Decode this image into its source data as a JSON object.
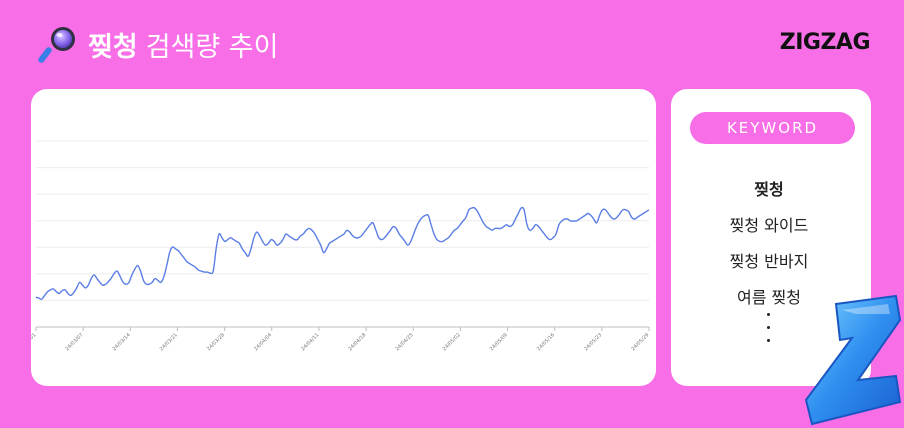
{
  "header": {
    "keyword": "찢청",
    "title_suffix": "검색량 추이",
    "icon": "magnifier-icon"
  },
  "brand": {
    "name": "ZIGZAG"
  },
  "keywords_panel": {
    "header": "KEYWORD",
    "items": [
      "찢청",
      "찢청 와이드",
      "찢청 반바지",
      "여름 찢청"
    ],
    "more_indicator": "ellipsis-vertical"
  },
  "colors": {
    "background": "#f76ee6",
    "line": "#5b7ee5",
    "card": "#ffffff"
  },
  "chart_data": {
    "type": "line",
    "title": "",
    "xlabel": "",
    "ylabel": "",
    "ylim": [
      0,
      100
    ],
    "grid": true,
    "x_ticks": [
      "24/03/01",
      "24/03/07",
      "24/03/14",
      "24/03/21",
      "24/03/28",
      "24/04/04",
      "24/04/11",
      "24/04/18",
      "24/04/25",
      "24/05/02",
      "24/05/09",
      "24/05/16",
      "24/05/23",
      "24/05/29"
    ],
    "series": [
      {
        "name": "",
        "values": [
          16,
          15.5,
          15,
          17,
          19,
          20,
          20.5,
          19,
          18,
          19.5,
          20,
          18,
          17,
          18.5,
          21,
          24,
          22.5,
          21,
          22.5,
          26,
          28,
          26,
          24,
          22.5,
          23,
          24.5,
          26.5,
          29,
          30,
          27,
          24,
          23,
          24,
          28,
          31,
          33,
          30,
          25,
          23,
          23,
          24,
          26,
          25,
          24,
          27,
          33,
          40,
          43,
          42,
          41,
          39,
          37,
          35,
          34,
          33,
          32,
          30.5,
          30,
          29.5,
          29.5,
          29,
          30,
          42,
          50,
          48,
          46,
          47,
          48,
          47,
          46,
          45,
          42,
          40,
          38,
          42,
          48,
          51,
          49,
          46,
          44,
          45,
          47,
          46,
          44,
          45,
          47,
          50,
          49,
          48,
          47,
          47,
          49,
          50,
          52,
          53,
          52,
          50,
          47,
          44,
          40,
          42,
          45,
          46,
          47,
          48,
          49,
          50,
          52,
          51,
          49,
          48,
          48,
          49,
          51,
          53,
          55,
          56,
          52,
          48,
          47,
          48,
          50,
          52,
          54,
          53,
          50,
          48,
          46,
          44,
          46,
          50,
          54,
          57,
          59,
          60,
          60,
          55,
          50,
          47,
          46,
          46,
          47,
          48,
          50,
          52,
          53,
          55,
          57,
          59,
          63,
          64,
          64,
          62,
          59,
          56,
          54,
          53,
          52,
          53,
          53,
          53,
          54,
          55,
          54,
          55,
          58,
          61,
          64,
          63,
          55,
          52,
          53,
          55,
          54,
          52,
          50,
          48,
          47,
          48,
          50,
          55,
          57,
          58,
          58,
          57,
          57,
          57,
          58,
          59,
          60,
          61,
          60,
          58,
          56,
          60,
          63,
          63,
          61,
          59,
          58,
          59,
          61,
          63,
          63,
          62,
          59,
          58,
          59,
          60,
          61,
          62,
          63
        ]
      }
    ]
  }
}
